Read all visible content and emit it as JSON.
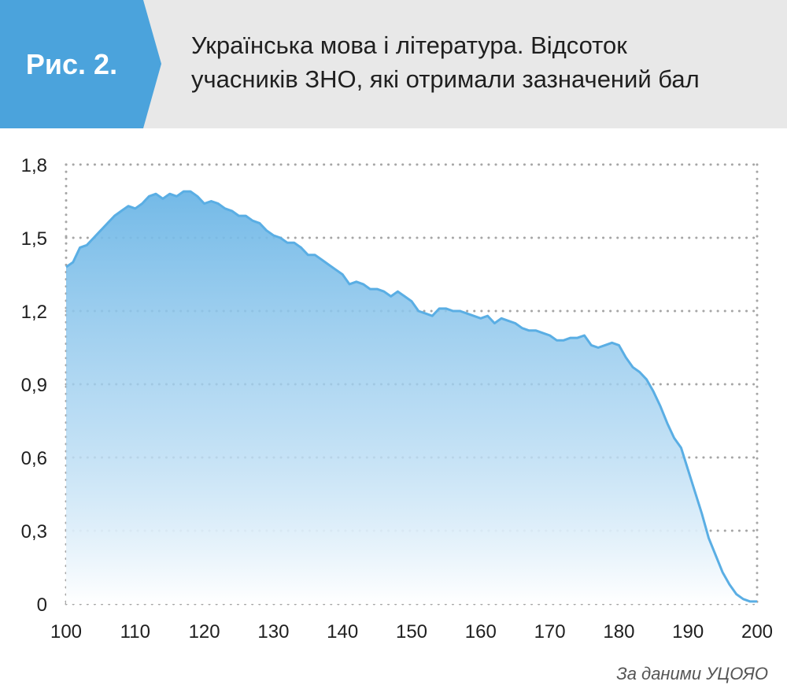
{
  "figure": {
    "label": "Рис. 2.",
    "title_line1": "Українська мова і література. Відсоток",
    "title_line2": "учасників ЗНО, які отримали зазначений бал"
  },
  "source": "За даними  УЦОЯО",
  "colors": {
    "header_bg": "#e8e8e8",
    "tag_bg": "#4ba3dc",
    "line": "#5aaee4",
    "fill_top": "#6cb6e6",
    "fill_bottom": "#ffffff",
    "grid": "#a6a6a6"
  },
  "chart_data": {
    "type": "area",
    "x": [
      100,
      101,
      102,
      103,
      104,
      105,
      106,
      107,
      108,
      109,
      110,
      111,
      112,
      113,
      114,
      115,
      116,
      117,
      118,
      119,
      120,
      121,
      122,
      123,
      124,
      125,
      126,
      127,
      128,
      129,
      130,
      131,
      132,
      133,
      134,
      135,
      136,
      137,
      138,
      139,
      140,
      141,
      142,
      143,
      144,
      145,
      146,
      147,
      148,
      149,
      150,
      151,
      152,
      153,
      154,
      155,
      156,
      157,
      158,
      159,
      160,
      161,
      162,
      163,
      164,
      165,
      166,
      167,
      168,
      169,
      170,
      171,
      172,
      173,
      174,
      175,
      176,
      177,
      178,
      179,
      180,
      181,
      182,
      183,
      184,
      185,
      186,
      187,
      188,
      189,
      190,
      191,
      192,
      193,
      194,
      195,
      196,
      197,
      198,
      199,
      200
    ],
    "y": [
      1.38,
      1.4,
      1.46,
      1.47,
      1.5,
      1.53,
      1.56,
      1.59,
      1.61,
      1.63,
      1.62,
      1.64,
      1.67,
      1.68,
      1.66,
      1.68,
      1.67,
      1.69,
      1.69,
      1.67,
      1.64,
      1.65,
      1.64,
      1.62,
      1.61,
      1.59,
      1.59,
      1.57,
      1.56,
      1.53,
      1.51,
      1.5,
      1.48,
      1.48,
      1.46,
      1.43,
      1.43,
      1.41,
      1.39,
      1.37,
      1.35,
      1.31,
      1.32,
      1.31,
      1.29,
      1.29,
      1.28,
      1.26,
      1.28,
      1.26,
      1.24,
      1.2,
      1.19,
      1.18,
      1.21,
      1.21,
      1.2,
      1.2,
      1.19,
      1.18,
      1.17,
      1.18,
      1.15,
      1.17,
      1.16,
      1.15,
      1.13,
      1.12,
      1.12,
      1.11,
      1.1,
      1.08,
      1.08,
      1.09,
      1.09,
      1.1,
      1.06,
      1.05,
      1.06,
      1.07,
      1.06,
      1.01,
      0.97,
      0.95,
      0.92,
      0.87,
      0.81,
      0.74,
      0.68,
      0.64,
      0.55,
      0.46,
      0.37,
      0.27,
      0.2,
      0.13,
      0.08,
      0.04,
      0.02,
      0.01,
      0.01
    ],
    "xlim": [
      100,
      200
    ],
    "ylim": [
      0,
      1.8
    ],
    "x_ticks": [
      100,
      110,
      120,
      130,
      140,
      150,
      160,
      170,
      180,
      190,
      200
    ],
    "x_tick_labels": [
      "100",
      "110",
      "120",
      "130",
      "140",
      "150",
      "160",
      "170",
      "180",
      "190",
      "200"
    ],
    "y_ticks": [
      0,
      0.3,
      0.6,
      0.9,
      1.2,
      1.5,
      1.8
    ],
    "y_tick_labels": [
      "0",
      "0,3",
      "0,6",
      "0,9",
      "1,2",
      "1,5",
      "1,8"
    ],
    "grid": true
  }
}
